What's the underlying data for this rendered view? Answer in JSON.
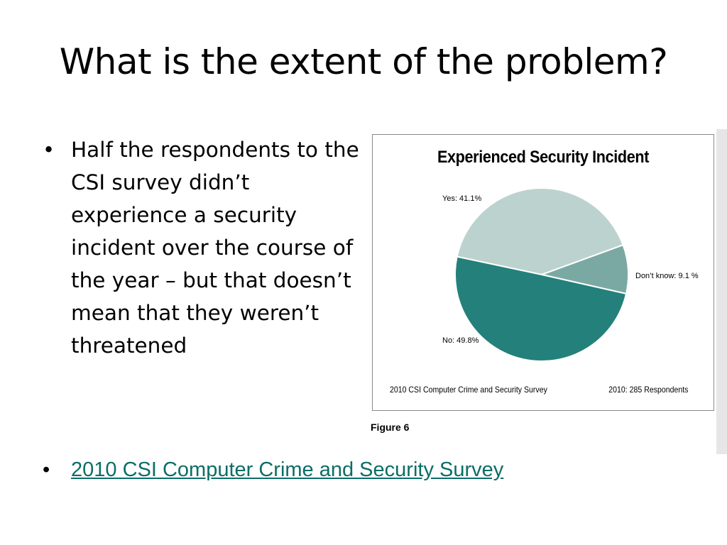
{
  "slide": {
    "title": "What is the extent of the problem?",
    "bullet_text": "Half the respondents to the CSI survey didn’t experience a security incident over the course of the year – but that doesn’t mean that they weren’t threatened",
    "link_text": "2010 CSI Computer Crime and Security Survey",
    "bullet_symbol": "•",
    "link_color": "#0a6e66"
  },
  "figure": {
    "caption": "Figure 6",
    "footer_left": "2010 CSI Computer Crime and Security Survey",
    "footer_right": "2010: 285 Respondents"
  },
  "chart_data": {
    "type": "pie",
    "title": "Experienced Security Incident",
    "slices": [
      {
        "label": "Yes: 41.1%",
        "value": 41.1,
        "color": "#bcd2ce"
      },
      {
        "label": "Don’t know: 9.1 %",
        "value": 9.1,
        "color": "#7aa9a3"
      },
      {
        "label": "No: 49.8%",
        "value": 49.8,
        "color": "#24807a"
      }
    ],
    "legend": "none"
  }
}
